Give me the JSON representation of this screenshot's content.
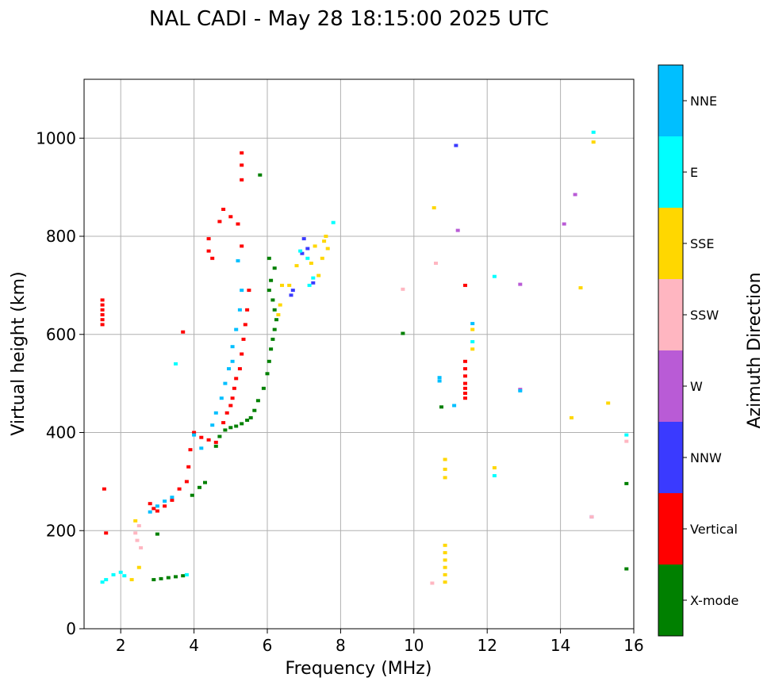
{
  "chart_data": {
    "type": "scatter",
    "title": "NAL CADI - May 28 18:15:00 2025 UTC",
    "xlabel": "Frequency (MHz)",
    "ylabel": "Virtual height (km)",
    "xlim": [
      1,
      16
    ],
    "ylim": [
      0,
      1120
    ],
    "x_ticks": [
      2,
      4,
      6,
      8,
      10,
      12,
      14,
      16
    ],
    "y_ticks": [
      0,
      200,
      400,
      600,
      800,
      1000
    ],
    "x_tick_labels": [
      "2",
      "4",
      "6",
      "8",
      "10",
      "12",
      "14",
      "16"
    ],
    "y_tick_labels": [
      "0",
      "200",
      "400",
      "600",
      "800",
      "1000"
    ],
    "grid": true,
    "colorbar": {
      "label": "Azimuth Direction",
      "categories": [
        "X-mode",
        "Vertical",
        "NNW",
        "W",
        "SSW",
        "SSE",
        "E",
        "NNE"
      ],
      "colors": {
        "X-mode": "#008000",
        "Vertical": "#ff0000",
        "NNW": "#3a3aff",
        "W": "#b95bd6",
        "SSW": "#ffb6c1",
        "SSE": "#ffd700",
        "E": "#00ffff",
        "NNE": "#00bfff"
      }
    },
    "series": [
      {
        "name": "X-mode",
        "points": [
          [
            2.9,
            100
          ],
          [
            3.1,
            102
          ],
          [
            3.3,
            104
          ],
          [
            3.5,
            106
          ],
          [
            3.7,
            108
          ],
          [
            3.0,
            193
          ],
          [
            3.95,
            272
          ],
          [
            4.15,
            288
          ],
          [
            4.3,
            298
          ],
          [
            4.6,
            372
          ],
          [
            4.7,
            392
          ],
          [
            4.85,
            405
          ],
          [
            5.0,
            410
          ],
          [
            5.15,
            413
          ],
          [
            5.3,
            418
          ],
          [
            5.45,
            425
          ],
          [
            5.55,
            430
          ],
          [
            5.65,
            445
          ],
          [
            5.75,
            465
          ],
          [
            5.9,
            490
          ],
          [
            6.0,
            520
          ],
          [
            6.05,
            545
          ],
          [
            6.1,
            570
          ],
          [
            6.15,
            590
          ],
          [
            6.2,
            610
          ],
          [
            6.25,
            630
          ],
          [
            6.2,
            650
          ],
          [
            6.15,
            670
          ],
          [
            6.05,
            690
          ],
          [
            6.1,
            710
          ],
          [
            6.2,
            735
          ],
          [
            6.05,
            755
          ],
          [
            5.8,
            925
          ],
          [
            9.7,
            602
          ],
          [
            10.75,
            452
          ],
          [
            15.8,
            296
          ],
          [
            15.8,
            122
          ]
        ]
      },
      {
        "name": "Vertical",
        "points": [
          [
            1.5,
            620
          ],
          [
            1.5,
            630
          ],
          [
            1.5,
            640
          ],
          [
            1.5,
            650
          ],
          [
            1.5,
            660
          ],
          [
            1.5,
            670
          ],
          [
            1.55,
            285
          ],
          [
            1.6,
            195
          ],
          [
            2.8,
            255
          ],
          [
            2.9,
            245
          ],
          [
            3.0,
            240
          ],
          [
            3.2,
            250
          ],
          [
            3.4,
            262
          ],
          [
            3.6,
            285
          ],
          [
            3.7,
            605
          ],
          [
            3.8,
            300
          ],
          [
            3.85,
            330
          ],
          [
            3.9,
            365
          ],
          [
            4.0,
            400
          ],
          [
            4.2,
            390
          ],
          [
            4.4,
            385
          ],
          [
            4.6,
            380
          ],
          [
            4.8,
            420
          ],
          [
            4.9,
            440
          ],
          [
            5.0,
            455
          ],
          [
            5.05,
            470
          ],
          [
            5.1,
            490
          ],
          [
            5.15,
            510
          ],
          [
            5.25,
            530
          ],
          [
            5.3,
            560
          ],
          [
            5.35,
            590
          ],
          [
            5.4,
            620
          ],
          [
            5.45,
            650
          ],
          [
            5.5,
            690
          ],
          [
            5.3,
            780
          ],
          [
            5.2,
            825
          ],
          [
            5.0,
            840
          ],
          [
            5.3,
            970
          ],
          [
            5.3,
            945
          ],
          [
            5.3,
            915
          ],
          [
            4.8,
            855
          ],
          [
            4.7,
            830
          ],
          [
            4.4,
            795
          ],
          [
            4.4,
            770
          ],
          [
            4.5,
            755
          ],
          [
            11.4,
            470
          ],
          [
            11.4,
            480
          ],
          [
            11.4,
            490
          ],
          [
            11.4,
            500
          ],
          [
            11.4,
            515
          ],
          [
            11.4,
            530
          ],
          [
            11.4,
            545
          ],
          [
            11.4,
            700
          ]
        ]
      },
      {
        "name": "NNW",
        "points": [
          [
            7.0,
            795
          ],
          [
            7.1,
            775
          ],
          [
            6.95,
            765
          ],
          [
            6.65,
            680
          ],
          [
            6.7,
            690
          ],
          [
            7.25,
            705
          ],
          [
            11.15,
            985
          ],
          [
            14.85,
            228
          ]
        ]
      },
      {
        "name": "W",
        "points": [
          [
            11.2,
            812
          ],
          [
            12.9,
            702
          ],
          [
            12.9,
            488
          ],
          [
            14.1,
            825
          ],
          [
            14.4,
            885
          ]
        ]
      },
      {
        "name": "SSW",
        "points": [
          [
            2.4,
            195
          ],
          [
            2.5,
            210
          ],
          [
            2.45,
            180
          ],
          [
            2.55,
            165
          ],
          [
            10.5,
            93
          ],
          [
            10.6,
            745
          ],
          [
            9.7,
            692
          ],
          [
            15.8,
            382
          ],
          [
            14.85,
            228
          ]
        ]
      },
      {
        "name": "SSE",
        "points": [
          [
            2.3,
            100
          ],
          [
            2.5,
            125
          ],
          [
            2.4,
            220
          ],
          [
            6.3,
            640
          ],
          [
            6.35,
            660
          ],
          [
            6.4,
            700
          ],
          [
            6.6,
            700
          ],
          [
            6.8,
            740
          ],
          [
            7.2,
            745
          ],
          [
            7.3,
            780
          ],
          [
            7.55,
            790
          ],
          [
            7.65,
            775
          ],
          [
            7.6,
            800
          ],
          [
            7.5,
            755
          ],
          [
            7.4,
            720
          ],
          [
            10.55,
            858
          ],
          [
            10.85,
            95
          ],
          [
            10.85,
            110
          ],
          [
            10.85,
            125
          ],
          [
            10.85,
            140
          ],
          [
            10.85,
            155
          ],
          [
            10.85,
            170
          ],
          [
            10.85,
            308
          ],
          [
            10.85,
            325
          ],
          [
            10.85,
            345
          ],
          [
            11.6,
            570
          ],
          [
            11.6,
            610
          ],
          [
            12.2,
            328
          ],
          [
            14.3,
            430
          ],
          [
            14.55,
            695
          ],
          [
            14.9,
            992
          ],
          [
            15.3,
            460
          ]
        ]
      },
      {
        "name": "E",
        "points": [
          [
            1.5,
            95
          ],
          [
            1.6,
            100
          ],
          [
            1.8,
            110
          ],
          [
            2.0,
            115
          ],
          [
            2.1,
            108
          ],
          [
            3.5,
            540
          ],
          [
            3.8,
            110
          ],
          [
            6.9,
            770
          ],
          [
            7.1,
            755
          ],
          [
            7.15,
            700
          ],
          [
            7.25,
            715
          ],
          [
            7.8,
            828
          ],
          [
            11.6,
            585
          ],
          [
            12.2,
            312
          ],
          [
            12.2,
            718
          ],
          [
            15.8,
            395
          ],
          [
            14.9,
            1012
          ]
        ]
      },
      {
        "name": "NNE",
        "points": [
          [
            2.8,
            238
          ],
          [
            3.0,
            250
          ],
          [
            3.2,
            260
          ],
          [
            3.4,
            268
          ],
          [
            4.0,
            395
          ],
          [
            4.2,
            368
          ],
          [
            4.5,
            415
          ],
          [
            4.6,
            440
          ],
          [
            4.75,
            470
          ],
          [
            4.85,
            500
          ],
          [
            4.95,
            530
          ],
          [
            5.05,
            545
          ],
          [
            5.05,
            575
          ],
          [
            5.15,
            610
          ],
          [
            5.25,
            650
          ],
          [
            5.3,
            690
          ],
          [
            5.2,
            750
          ],
          [
            10.7,
            512
          ],
          [
            10.7,
            505
          ],
          [
            11.1,
            455
          ],
          [
            11.6,
            622
          ],
          [
            12.9,
            485
          ]
        ]
      }
    ]
  }
}
